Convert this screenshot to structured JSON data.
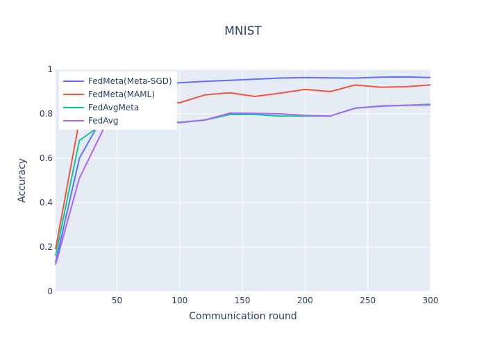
{
  "chart_data": {
    "type": "line",
    "title": "MNIST",
    "xlabel": "Communication round",
    "ylabel": "Accuracy",
    "xlim": [
      1,
      300
    ],
    "ylim": [
      0,
      1
    ],
    "xticks": [
      50,
      100,
      150,
      200,
      250,
      300
    ],
    "xtick_labels": [
      "50",
      "100",
      "150",
      "200",
      "250",
      "300"
    ],
    "yticks": [
      0,
      0.2,
      0.4,
      0.6,
      0.8,
      1
    ],
    "ytick_labels": [
      "0",
      "0.2",
      "0.4",
      "0.6",
      "0.8",
      "1"
    ],
    "grid": true,
    "legend_position": "top-left",
    "background_color": "#e5ecf6",
    "series": [
      {
        "name": "FedMeta(Meta-SGD)",
        "color": "#636efa",
        "x": [
          1,
          20,
          40,
          60,
          80,
          100,
          120,
          140,
          160,
          180,
          200,
          220,
          240,
          260,
          280,
          300
        ],
        "y": [
          0.13,
          0.6,
          0.8,
          0.89,
          0.925,
          0.94,
          0.946,
          0.951,
          0.956,
          0.961,
          0.963,
          0.962,
          0.961,
          0.965,
          0.966,
          0.963
        ]
      },
      {
        "name": "FedMeta(MAML)",
        "color": "#ef553b",
        "x": [
          1,
          20,
          40,
          60,
          80,
          100,
          120,
          140,
          160,
          180,
          200,
          220,
          240,
          260,
          280,
          300
        ],
        "y": [
          0.19,
          0.77,
          0.83,
          0.85,
          0.86,
          0.85,
          0.885,
          0.895,
          0.878,
          0.893,
          0.91,
          0.9,
          0.93,
          0.92,
          0.922,
          0.93
        ]
      },
      {
        "name": "FedAvgMeta",
        "color": "#00cc96",
        "x": [
          1,
          20,
          40,
          60,
          80,
          100,
          120,
          140,
          160,
          180,
          200,
          220,
          240,
          260,
          280,
          300
        ],
        "y": [
          0.16,
          0.68,
          0.76,
          0.775,
          0.77,
          0.762,
          0.772,
          0.797,
          0.797,
          0.79,
          0.79,
          0.79,
          0.826,
          0.835,
          0.838,
          0.843
        ]
      },
      {
        "name": "FedAvg",
        "color": "#ab63fa",
        "x": [
          1,
          20,
          40,
          60,
          80,
          100,
          120,
          140,
          160,
          180,
          200,
          220,
          240,
          260,
          280,
          300
        ],
        "y": [
          0.12,
          0.51,
          0.74,
          0.775,
          0.77,
          0.76,
          0.772,
          0.803,
          0.802,
          0.8,
          0.793,
          0.79,
          0.825,
          0.834,
          0.838,
          0.84
        ]
      }
    ]
  }
}
